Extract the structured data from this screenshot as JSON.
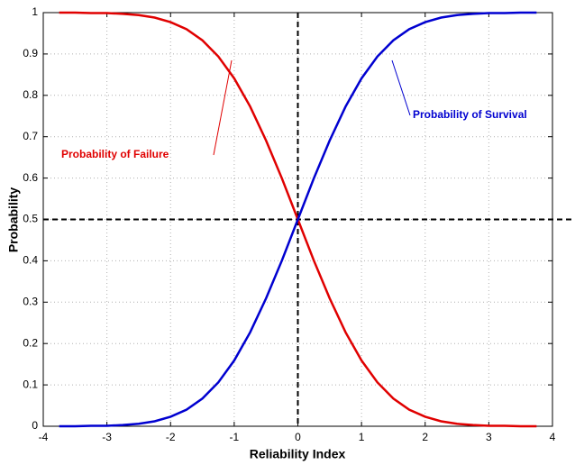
{
  "chart_data": {
    "type": "line",
    "xlabel": "Reliability Index",
    "ylabel": "Probability",
    "x": [
      -3.75,
      -3.5,
      -3.25,
      -3,
      -2.75,
      -2.5,
      -2.25,
      -2,
      -1.75,
      -1.5,
      -1.25,
      -1,
      -0.75,
      -0.5,
      -0.25,
      0,
      0.25,
      0.5,
      0.75,
      1,
      1.25,
      1.5,
      1.75,
      2,
      2.25,
      2.5,
      2.75,
      3,
      3.25,
      3.5,
      3.75
    ],
    "series": [
      {
        "name": "Probability of Failure",
        "color": "#e00000",
        "values": [
          1,
          1,
          0.999,
          0.999,
          0.997,
          0.994,
          0.988,
          0.977,
          0.96,
          0.933,
          0.894,
          0.841,
          0.773,
          0.691,
          0.599,
          0.5,
          0.401,
          0.309,
          0.227,
          0.159,
          0.106,
          0.067,
          0.04,
          0.023,
          0.012,
          0.006,
          0.003,
          0.001,
          0.001,
          0,
          0
        ]
      },
      {
        "name": "Probability of Survival",
        "color": "#0000d0",
        "values": [
          0,
          0,
          0.001,
          0.001,
          0.003,
          0.006,
          0.012,
          0.023,
          0.04,
          0.067,
          0.106,
          0.159,
          0.227,
          0.309,
          0.401,
          0.5,
          0.599,
          0.691,
          0.773,
          0.841,
          0.894,
          0.933,
          0.96,
          0.977,
          0.988,
          0.994,
          0.997,
          0.999,
          0.999,
          1,
          1
        ]
      }
    ],
    "xlim": [
      -4,
      4
    ],
    "xticks": [
      -4,
      -3,
      -2,
      -1,
      0,
      1,
      2,
      3,
      4
    ],
    "ylim": [
      0,
      1
    ],
    "yticks": [
      0,
      0.1,
      0.2,
      0.3,
      0.4,
      0.5,
      0.6,
      0.7,
      0.8,
      0.9,
      1
    ],
    "grid": true,
    "reference_lines": {
      "x": 0,
      "y": 0.5
    }
  }
}
